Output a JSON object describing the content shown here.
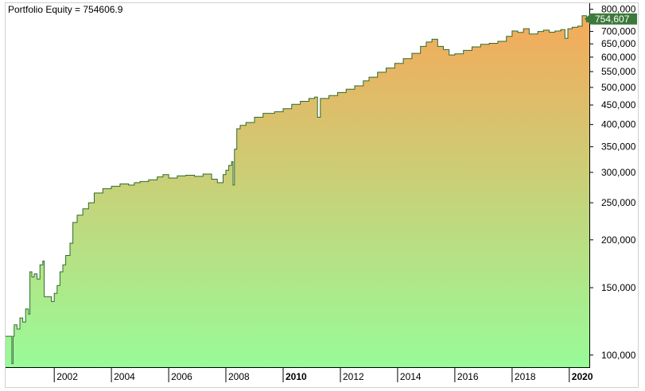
{
  "chart_data": {
    "type": "area",
    "title": "Portfolio Equity = 754606.9",
    "y_scale": "log",
    "ylim": [
      93000,
      830000
    ],
    "xlim": [
      2000.3,
      2020.7
    ],
    "y_ticks": [
      {
        "value": 100000,
        "label": "100,000"
      },
      {
        "value": 150000,
        "label": "150,000"
      },
      {
        "value": 200000,
        "label": "200,000"
      },
      {
        "value": 250000,
        "label": "250,000"
      },
      {
        "value": 300000,
        "label": "300,000"
      },
      {
        "value": 350000,
        "label": "350,000"
      },
      {
        "value": 400000,
        "label": "400,000"
      },
      {
        "value": 450000,
        "label": "450,000"
      },
      {
        "value": 500000,
        "label": "500,000"
      },
      {
        "value": 550000,
        "label": "550,000"
      },
      {
        "value": 600000,
        "label": "600,000"
      },
      {
        "value": 650000,
        "label": "650,000"
      },
      {
        "value": 700000,
        "label": "700,000"
      },
      {
        "value": 800000,
        "label": "800,000"
      }
    ],
    "x_ticks": [
      {
        "value": 2002,
        "label": "2002",
        "bold": false
      },
      {
        "value": 2004,
        "label": "2004",
        "bold": false
      },
      {
        "value": 2006,
        "label": "2006",
        "bold": false
      },
      {
        "value": 2008,
        "label": "2008",
        "bold": false
      },
      {
        "value": 2010,
        "label": "2010",
        "bold": true
      },
      {
        "value": 2012,
        "label": "2012",
        "bold": false
      },
      {
        "value": 2014,
        "label": "2014",
        "bold": false
      },
      {
        "value": 2016,
        "label": "2016",
        "bold": false
      },
      {
        "value": 2018,
        "label": "2018",
        "bold": false
      },
      {
        "value": 2020,
        "label": "2020",
        "bold": true
      }
    ],
    "last_value_label": "754,607",
    "last_value": 754607,
    "series": [
      {
        "color_fill_top": "#F5A95A",
        "color_fill_bottom": "#98FB98",
        "color_line": "#2E6B2E",
        "label_color": "#3C7A3C",
        "points": [
          [
            2000.3,
            112000
          ],
          [
            2000.5,
            112000
          ],
          [
            2000.52,
            95000
          ],
          [
            2000.56,
            112000
          ],
          [
            2000.6,
            120000
          ],
          [
            2000.7,
            117000
          ],
          [
            2000.8,
            125000
          ],
          [
            2000.9,
            122000
          ],
          [
            2001.0,
            132000
          ],
          [
            2001.1,
            128000
          ],
          [
            2001.15,
            165000
          ],
          [
            2001.22,
            160000
          ],
          [
            2001.3,
            163000
          ],
          [
            2001.4,
            158000
          ],
          [
            2001.5,
            172000
          ],
          [
            2001.6,
            176000
          ],
          [
            2001.65,
            142000
          ],
          [
            2001.8,
            142000
          ],
          [
            2001.9,
            138000
          ],
          [
            2002.0,
            145000
          ],
          [
            2002.1,
            152000
          ],
          [
            2002.2,
            165000
          ],
          [
            2002.3,
            172000
          ],
          [
            2002.4,
            182000
          ],
          [
            2002.55,
            196000
          ],
          [
            2002.65,
            222000
          ],
          [
            2002.8,
            232000
          ],
          [
            2003.0,
            241000
          ],
          [
            2003.2,
            250000
          ],
          [
            2003.4,
            265000
          ],
          [
            2003.7,
            272000
          ],
          [
            2004.0,
            276000
          ],
          [
            2004.3,
            280000
          ],
          [
            2004.6,
            278000
          ],
          [
            2004.8,
            282000
          ],
          [
            2005.0,
            284000
          ],
          [
            2005.3,
            287000
          ],
          [
            2005.6,
            292000
          ],
          [
            2005.8,
            296000
          ],
          [
            2006.0,
            290000
          ],
          [
            2006.3,
            294000
          ],
          [
            2006.6,
            295000
          ],
          [
            2006.9,
            293000
          ],
          [
            2007.2,
            297000
          ],
          [
            2007.5,
            288000
          ],
          [
            2007.7,
            282000
          ],
          [
            2007.9,
            296000
          ],
          [
            2008.0,
            304000
          ],
          [
            2008.1,
            313000
          ],
          [
            2008.2,
            320000
          ],
          [
            2008.25,
            278000
          ],
          [
            2008.3,
            345000
          ],
          [
            2008.38,
            390000
          ],
          [
            2008.5,
            398000
          ],
          [
            2008.7,
            405000
          ],
          [
            2009.0,
            418000
          ],
          [
            2009.3,
            428000
          ],
          [
            2009.7,
            432000
          ],
          [
            2010.0,
            440000
          ],
          [
            2010.3,
            452000
          ],
          [
            2010.6,
            460000
          ],
          [
            2010.9,
            468000
          ],
          [
            2011.1,
            472000
          ],
          [
            2011.2,
            418000
          ],
          [
            2011.3,
            468000
          ],
          [
            2011.6,
            476000
          ],
          [
            2011.9,
            485000
          ],
          [
            2012.2,
            495000
          ],
          [
            2012.5,
            505000
          ],
          [
            2012.8,
            520000
          ],
          [
            2013.0,
            532000
          ],
          [
            2013.3,
            548000
          ],
          [
            2013.6,
            562000
          ],
          [
            2013.9,
            578000
          ],
          [
            2014.2,
            595000
          ],
          [
            2014.5,
            614000
          ],
          [
            2014.8,
            640000
          ],
          [
            2015.0,
            657000
          ],
          [
            2015.2,
            668000
          ],
          [
            2015.4,
            640000
          ],
          [
            2015.6,
            628000
          ],
          [
            2015.8,
            608000
          ],
          [
            2016.0,
            612000
          ],
          [
            2016.3,
            625000
          ],
          [
            2016.6,
            638000
          ],
          [
            2016.9,
            648000
          ],
          [
            2017.2,
            652000
          ],
          [
            2017.5,
            660000
          ],
          [
            2017.8,
            680000
          ],
          [
            2018.0,
            702000
          ],
          [
            2018.2,
            696000
          ],
          [
            2018.4,
            712000
          ],
          [
            2018.6,
            690000
          ],
          [
            2018.9,
            700000
          ],
          [
            2019.1,
            706000
          ],
          [
            2019.3,
            697000
          ],
          [
            2019.5,
            702000
          ],
          [
            2019.7,
            708000
          ],
          [
            2019.85,
            672000
          ],
          [
            2019.95,
            712000
          ],
          [
            2020.1,
            718000
          ],
          [
            2020.3,
            723000
          ],
          [
            2020.45,
            770000
          ],
          [
            2020.6,
            742000
          ],
          [
            2020.7,
            754607
          ]
        ]
      }
    ]
  }
}
